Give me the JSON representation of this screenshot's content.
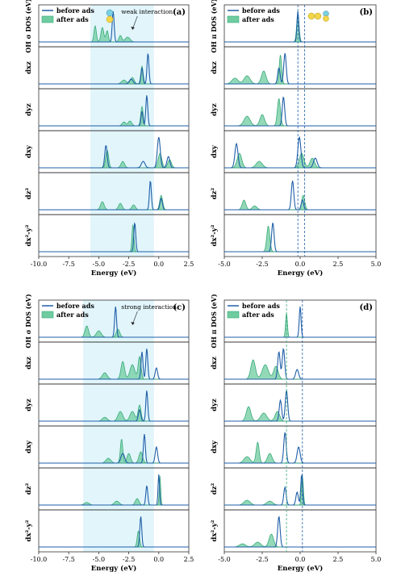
{
  "figure": {
    "panels": [
      {
        "label": "(a)",
        "xlim": [
          -10.0,
          2.5
        ],
        "xticks": [
          -10.0,
          -7.5,
          -5.0,
          -2.5,
          0.0,
          2.5
        ],
        "xtick_labels": [
          "-10.0",
          "-7.5",
          "-5.0",
          "-2.5",
          "0.0",
          "2.5"
        ],
        "xlabel": "Energy (eV)",
        "shade": [
          -5.7,
          -0.4
        ],
        "vlines": [],
        "annotation": "weak interaction",
        "has_legend": true,
        "icon": "molecule-icon-vertical"
      },
      {
        "label": "(b)",
        "xlim": [
          -5.0,
          5.0
        ],
        "xticks": [
          -5.0,
          -2.5,
          0.0,
          2.5,
          5.0
        ],
        "xtick_labels": [
          "-5.0",
          "-2.5",
          "0.0",
          "2.5",
          "5.0"
        ],
        "xlabel": "Energy (eV)",
        "shade": null,
        "vlines": [
          -0.15,
          0.3
        ],
        "annotation": "",
        "has_legend": true,
        "icon": "molecule-icon-horizontal"
      },
      {
        "label": "(c)",
        "xlim": [
          -10.0,
          2.5
        ],
        "xticks": [
          -10.0,
          -7.5,
          -5.0,
          -2.5,
          0.0,
          2.5
        ],
        "xtick_labels": [
          "-10.0",
          "-7.5",
          "-5.0",
          "-2.5",
          "0.0",
          "2.5"
        ],
        "xlabel": "Energy (eV)",
        "shade": [
          -6.3,
          -0.4
        ],
        "vlines": [],
        "annotation": "strong interaction",
        "has_legend": true,
        "icon": ""
      },
      {
        "label": "(d)",
        "xlim": [
          -5.0,
          5.0
        ],
        "xticks": [
          -5.0,
          -2.5,
          0.0,
          2.5,
          5.0
        ],
        "xtick_labels": [
          "-5.0",
          "-2.5",
          "0.0",
          "2.5",
          "5.0"
        ],
        "xlabel": "Energy (eV)",
        "shade": null,
        "vlines": [
          -0.9,
          0.15
        ],
        "annotation": "",
        "has_legend": true,
        "icon": ""
      }
    ],
    "legend": {
      "before": "before ads",
      "after": "after ads"
    },
    "colors": {
      "before": "#1f5fa8",
      "after": "#3aaa7a",
      "after_fill": "#6fcca0",
      "shade": "#e1f5fb"
    }
  },
  "chart_data": [
    {
      "type": "area",
      "panel": "(a)",
      "xlabel": "Energy (eV)",
      "rows": [
        "OH σ DOS (eV)",
        "dxz",
        "dyz",
        "dxy",
        "dz²",
        "dx²-y²"
      ],
      "series": [
        {
          "name": "before ads",
          "row": 0,
          "peaks": [
            [
              -3.8,
              0.95,
              0.08
            ]
          ]
        },
        {
          "name": "after ads",
          "row": 0,
          "peaks": [
            [
              -5.3,
              0.5,
              0.1
            ],
            [
              -4.7,
              0.45,
              0.12
            ],
            [
              -4.3,
              0.35,
              0.1
            ],
            [
              -3.2,
              0.2,
              0.12
            ],
            [
              -2.6,
              0.15,
              0.2
            ]
          ]
        },
        {
          "name": "before ads",
          "row": 1,
          "peaks": [
            [
              -0.9,
              0.95,
              0.08
            ],
            [
              -1.4,
              0.5,
              0.08
            ],
            [
              -2.3,
              0.15,
              0.15
            ]
          ]
        },
        {
          "name": "after ads",
          "row": 1,
          "peaks": [
            [
              -1.4,
              0.55,
              0.1
            ],
            [
              -2.2,
              0.2,
              0.15
            ],
            [
              -2.9,
              0.12,
              0.2
            ]
          ]
        },
        {
          "name": "before ads",
          "row": 2,
          "peaks": [
            [
              -1.0,
              0.95,
              0.08
            ],
            [
              -1.4,
              0.45,
              0.08
            ]
          ]
        },
        {
          "name": "after ads",
          "row": 2,
          "peaks": [
            [
              -1.4,
              0.6,
              0.1
            ],
            [
              -2.4,
              0.15,
              0.15
            ],
            [
              -2.9,
              0.12,
              0.15
            ]
          ]
        },
        {
          "name": "before ads",
          "row": 3,
          "peaks": [
            [
              0.0,
              0.95,
              0.12
            ],
            [
              -4.4,
              0.7,
              0.1
            ],
            [
              0.8,
              0.35,
              0.12
            ],
            [
              -1.3,
              0.2,
              0.15
            ]
          ]
        },
        {
          "name": "after ads",
          "row": 3,
          "peaks": [
            [
              -4.3,
              0.55,
              0.12
            ],
            [
              -3.0,
              0.2,
              0.15
            ],
            [
              0.1,
              0.45,
              0.15
            ],
            [
              0.9,
              0.25,
              0.15
            ]
          ]
        },
        {
          "name": "before ads",
          "row": 4,
          "peaks": [
            [
              -0.7,
              0.9,
              0.08
            ],
            [
              0.2,
              0.35,
              0.1
            ]
          ]
        },
        {
          "name": "after ads",
          "row": 4,
          "peaks": [
            [
              0.2,
              0.45,
              0.12
            ],
            [
              -4.7,
              0.25,
              0.15
            ],
            [
              -3.2,
              0.2,
              0.15
            ],
            [
              -2.1,
              0.15,
              0.15
            ]
          ]
        },
        {
          "name": "before ads",
          "row": 5,
          "peaks": [
            [
              -2.0,
              0.9,
              0.08
            ]
          ]
        },
        {
          "name": "after ads",
          "row": 5,
          "peaks": [
            [
              -2.15,
              0.85,
              0.08
            ]
          ]
        }
      ]
    },
    {
      "type": "area",
      "panel": "(b)",
      "xlabel": "Energy (eV)",
      "rows": [
        "OH π DOS (eV)",
        "dxz",
        "dyz",
        "dxy",
        "dz²",
        "dx²-y²"
      ],
      "series": [
        {
          "name": "before ads",
          "row": 0,
          "peaks": [
            [
              -0.15,
              0.95,
              0.06
            ]
          ]
        },
        {
          "name": "after ads",
          "row": 0,
          "peaks": [
            [
              -0.15,
              0.85,
              0.08
            ]
          ]
        },
        {
          "name": "before ads",
          "row": 1,
          "peaks": [
            [
              -1.0,
              0.95,
              0.08
            ],
            [
              -1.4,
              0.5,
              0.08
            ]
          ]
        },
        {
          "name": "after ads",
          "row": 1,
          "peaks": [
            [
              -1.3,
              0.9,
              0.08
            ],
            [
              -2.4,
              0.4,
              0.15
            ],
            [
              -3.5,
              0.25,
              0.2
            ],
            [
              -4.3,
              0.18,
              0.2
            ]
          ]
        },
        {
          "name": "before ads",
          "row": 2,
          "peaks": [
            [
              -1.1,
              0.9,
              0.08
            ]
          ]
        },
        {
          "name": "after ads",
          "row": 2,
          "peaks": [
            [
              -1.4,
              0.85,
              0.1
            ],
            [
              -2.5,
              0.35,
              0.15
            ],
            [
              -3.5,
              0.3,
              0.2
            ]
          ]
        },
        {
          "name": "before ads",
          "row": 3,
          "peaks": [
            [
              -4.2,
              0.75,
              0.1
            ],
            [
              -0.05,
              0.95,
              0.1
            ],
            [
              1.0,
              0.3,
              0.12
            ]
          ]
        },
        {
          "name": "after ads",
          "row": 3,
          "peaks": [
            [
              -4.0,
              0.45,
              0.15
            ],
            [
              -2.7,
              0.2,
              0.2
            ],
            [
              0.1,
              0.45,
              0.15
            ],
            [
              0.8,
              0.3,
              0.15
            ]
          ]
        },
        {
          "name": "before ads",
          "row": 4,
          "peaks": [
            [
              -0.5,
              0.9,
              0.08
            ],
            [
              0.15,
              0.3,
              0.08
            ]
          ]
        },
        {
          "name": "after ads",
          "row": 4,
          "peaks": [
            [
              0.2,
              0.45,
              0.1
            ],
            [
              -3.7,
              0.3,
              0.12
            ],
            [
              -3.0,
              0.12,
              0.15
            ]
          ]
        },
        {
          "name": "before ads",
          "row": 5,
          "peaks": [
            [
              -1.8,
              0.9,
              0.08
            ]
          ]
        },
        {
          "name": "after ads",
          "row": 5,
          "peaks": [
            [
              -2.1,
              0.8,
              0.1
            ]
          ]
        }
      ]
    },
    {
      "type": "area",
      "panel": "(c)",
      "xlabel": "Energy (eV)",
      "rows": [
        "OH σ DOS (eV)",
        "dxz",
        "dyz",
        "dxy",
        "dz²",
        "dx²-y²"
      ],
      "series": [
        {
          "name": "before ads",
          "row": 0,
          "peaks": [
            [
              -3.6,
              0.95,
              0.08
            ]
          ]
        },
        {
          "name": "after ads",
          "row": 0,
          "peaks": [
            [
              -6.0,
              0.35,
              0.15
            ],
            [
              -5.0,
              0.2,
              0.2
            ],
            [
              -3.4,
              0.25,
              0.15
            ]
          ]
        },
        {
          "name": "before ads",
          "row": 1,
          "peaks": [
            [
              -1.0,
              0.95,
              0.08
            ],
            [
              -1.4,
              0.85,
              0.08
            ],
            [
              -0.2,
              0.35,
              0.1
            ]
          ]
        },
        {
          "name": "after ads",
          "row": 1,
          "peaks": [
            [
              -3.0,
              0.55,
              0.15
            ],
            [
              -2.2,
              0.45,
              0.2
            ],
            [
              -1.6,
              0.7,
              0.12
            ],
            [
              -4.5,
              0.2,
              0.2
            ]
          ]
        },
        {
          "name": "before ads",
          "row": 2,
          "peaks": [
            [
              -1.0,
              0.95,
              0.08
            ],
            [
              -1.6,
              0.35,
              0.1
            ]
          ]
        },
        {
          "name": "after ads",
          "row": 2,
          "peaks": [
            [
              -3.2,
              0.3,
              0.2
            ],
            [
              -2.2,
              0.3,
              0.2
            ],
            [
              -1.6,
              0.5,
              0.12
            ],
            [
              -4.5,
              0.12,
              0.2
            ]
          ]
        },
        {
          "name": "before ads",
          "row": 3,
          "peaks": [
            [
              -1.2,
              0.9,
              0.08
            ],
            [
              -0.2,
              0.5,
              0.1
            ],
            [
              -3.0,
              0.3,
              0.15
            ]
          ]
        },
        {
          "name": "after ads",
          "row": 3,
          "peaks": [
            [
              -3.1,
              0.75,
              0.1
            ],
            [
              -2.5,
              0.3,
              0.15
            ],
            [
              -1.5,
              0.35,
              0.15
            ],
            [
              -4.2,
              0.15,
              0.2
            ]
          ]
        },
        {
          "name": "before ads",
          "row": 4,
          "peaks": [
            [
              -1.0,
              0.6,
              0.08
            ],
            [
              0.0,
              0.95,
              0.06
            ]
          ]
        },
        {
          "name": "after ads",
          "row": 4,
          "peaks": [
            [
              0.1,
              0.9,
              0.06
            ],
            [
              -1.8,
              0.2,
              0.15
            ],
            [
              -3.5,
              0.12,
              0.2
            ],
            [
              -6.0,
              0.08,
              0.2
            ]
          ]
        },
        {
          "name": "before ads",
          "row": 5,
          "peaks": [
            [
              -1.5,
              0.95,
              0.08
            ]
          ]
        },
        {
          "name": "after ads",
          "row": 5,
          "peaks": [
            [
              -1.7,
              0.5,
              0.1
            ]
          ]
        }
      ]
    },
    {
      "type": "area",
      "panel": "(d)",
      "xlabel": "Energy (eV)",
      "rows": [
        "OH π DOS (eV)",
        "dxz",
        "dyz",
        "dxy",
        "dz²",
        "dx²-y²"
      ],
      "series": [
        {
          "name": "before ads",
          "row": 0,
          "peaks": [
            [
              0.0,
              0.95,
              0.06
            ]
          ]
        },
        {
          "name": "after ads",
          "row": 0,
          "peaks": [
            [
              -0.9,
              0.75,
              0.06
            ]
          ]
        },
        {
          "name": "before ads",
          "row": 1,
          "peaks": [
            [
              -1.1,
              0.95,
              0.08
            ],
            [
              -1.4,
              0.85,
              0.08
            ],
            [
              -0.2,
              0.3,
              0.1
            ]
          ]
        },
        {
          "name": "after ads",
          "row": 1,
          "peaks": [
            [
              -3.1,
              0.6,
              0.15
            ],
            [
              -2.3,
              0.45,
              0.2
            ],
            [
              -1.6,
              0.4,
              0.15
            ]
          ]
        },
        {
          "name": "before ads",
          "row": 2,
          "peaks": [
            [
              -0.9,
              0.95,
              0.08
            ],
            [
              -1.3,
              0.65,
              0.08
            ]
          ]
        },
        {
          "name": "after ads",
          "row": 2,
          "peaks": [
            [
              -3.4,
              0.45,
              0.15
            ],
            [
              -2.4,
              0.25,
              0.2
            ],
            [
              -1.5,
              0.3,
              0.15
            ]
          ]
        },
        {
          "name": "before ads",
          "row": 3,
          "peaks": [
            [
              -1.0,
              0.95,
              0.08
            ],
            [
              -0.1,
              0.5,
              0.1
            ]
          ]
        },
        {
          "name": "after ads",
          "row": 3,
          "peaks": [
            [
              -2.8,
              0.65,
              0.1
            ],
            [
              -2.0,
              0.3,
              0.15
            ],
            [
              -3.5,
              0.2,
              0.2
            ]
          ]
        },
        {
          "name": "before ads",
          "row": 4,
          "peaks": [
            [
              -1.0,
              0.55,
              0.08
            ],
            [
              -0.2,
              0.4,
              0.08
            ],
            [
              0.1,
              0.95,
              0.06
            ]
          ]
        },
        {
          "name": "after ads",
          "row": 4,
          "peaks": [
            [
              0.15,
              0.9,
              0.06
            ],
            [
              -3.5,
              0.15,
              0.2
            ],
            [
              -2.0,
              0.12,
              0.2
            ]
          ]
        },
        {
          "name": "before ads",
          "row": 5,
          "peaks": [
            [
              -1.4,
              0.95,
              0.08
            ]
          ]
        },
        {
          "name": "after ads",
          "row": 5,
          "peaks": [
            [
              -1.9,
              0.4,
              0.15
            ],
            [
              -2.8,
              0.15,
              0.2
            ],
            [
              -3.8,
              0.1,
              0.2
            ]
          ]
        }
      ]
    }
  ]
}
